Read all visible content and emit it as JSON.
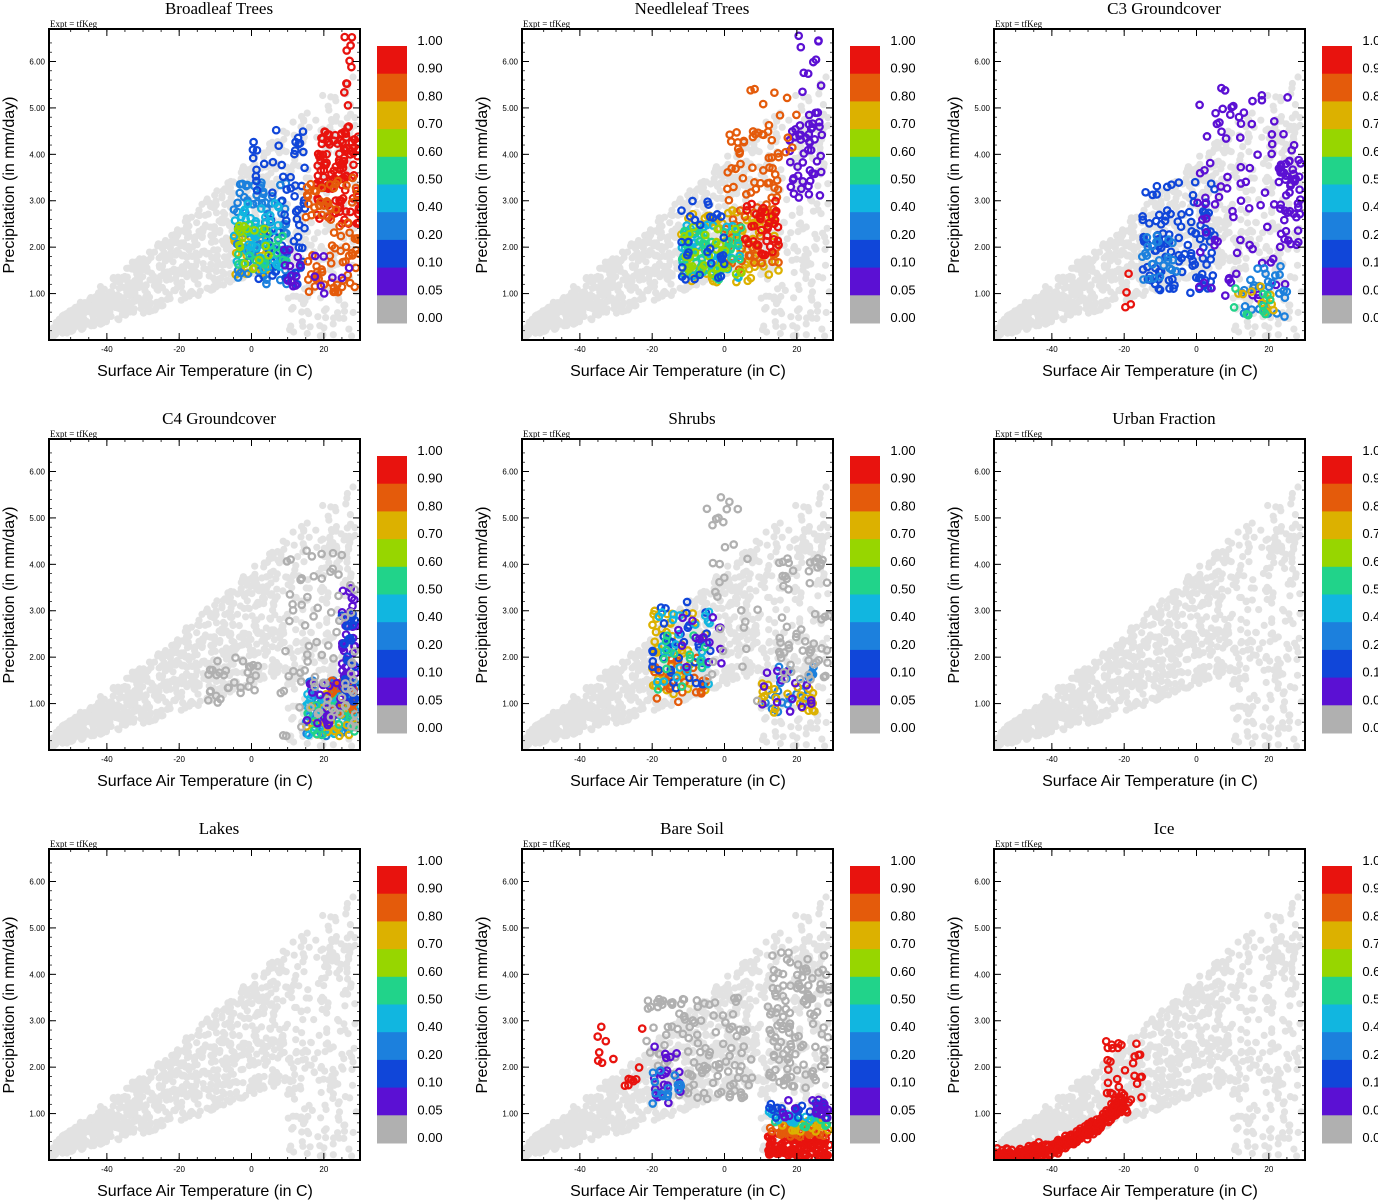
{
  "figure": {
    "expt_label": "Expt = tfKeg",
    "xlabel": "Surface Air Temperature (in C)",
    "ylabel": "Precipitation (in mm/day)"
  },
  "colorbar": {
    "labels": [
      "1.00",
      "0.90",
      "0.80",
      "0.70",
      "0.60",
      "0.50",
      "0.40",
      "0.20",
      "0.10",
      "0.05",
      "0.00"
    ],
    "colors": [
      "#e8130e",
      "#e45b0b",
      "#dcb100",
      "#97d600",
      "#21d38a",
      "#11b6e0",
      "#1c80dd",
      "#1046d9",
      "#5b10d3",
      "#b0b0b0"
    ]
  },
  "chart_data": [
    {
      "type": "scatter",
      "title": "Broadleaf Trees",
      "xlim": [
        -56,
        30
      ],
      "ylim": [
        0,
        6.7
      ],
      "xticks": [
        "-40",
        "-20",
        "0",
        "20"
      ],
      "yticks": [
        "1.00",
        "2.00",
        "3.00",
        "4.00",
        "5.00",
        "6.00"
      ],
      "clusters": [
        {
          "x": [
            -5,
            5
          ],
          "y": [
            1.4,
            2.4
          ],
          "color": "#dcb100",
          "n": 40
        },
        {
          "x": [
            -5,
            10
          ],
          "y": [
            1.2,
            3.4
          ],
          "color": "#1c80dd",
          "n": 80
        },
        {
          "x": [
            0,
            15
          ],
          "y": [
            1.0,
            4.6
          ],
          "color": "#1046d9",
          "n": 70
        },
        {
          "x": [
            -5,
            8
          ],
          "y": [
            1.5,
            3.0
          ],
          "color": "#11b6e0",
          "n": 50
        },
        {
          "x": [
            18,
            30
          ],
          "y": [
            2.5,
            4.5
          ],
          "color": "#e8130e",
          "n": 120
        },
        {
          "x": [
            15,
            30
          ],
          "y": [
            1.0,
            3.5
          ],
          "color": "#e45b0b",
          "n": 80
        },
        {
          "x": [
            -5,
            10
          ],
          "y": [
            1.5,
            2.5
          ],
          "color": "#21d38a",
          "n": 20
        },
        {
          "x": [
            -5,
            5
          ],
          "y": [
            1.5,
            2.5
          ],
          "color": "#97d600",
          "n": 15
        },
        {
          "x": [
            8,
            28
          ],
          "y": [
            1.0,
            2.0
          ],
          "color": "#5b10d3",
          "n": 20
        },
        {
          "x": [
            25,
            29
          ],
          "y": [
            4.5,
            6.6
          ],
          "color": "#e8130e",
          "n": 12
        }
      ]
    },
    {
      "type": "scatter",
      "title": "Needleleaf Trees",
      "xlim": [
        -56,
        30
      ],
      "ylim": [
        0,
        6.7
      ],
      "xticks": [
        "-40",
        "-20",
        "0",
        "20"
      ],
      "yticks": [
        "1.00",
        "2.00",
        "3.00",
        "4.00",
        "5.00",
        "6.00"
      ],
      "clusters": [
        {
          "x": [
            -12,
            15
          ],
          "y": [
            1.2,
            2.8
          ],
          "color": "#dcb100",
          "n": 90
        },
        {
          "x": [
            0,
            15
          ],
          "y": [
            1.5,
            4.5
          ],
          "color": "#e45b0b",
          "n": 80
        },
        {
          "x": [
            5,
            15
          ],
          "y": [
            1.8,
            3.0
          ],
          "color": "#e8130e",
          "n": 40
        },
        {
          "x": [
            -12,
            5
          ],
          "y": [
            1.3,
            2.5
          ],
          "color": "#11b6e0",
          "n": 50
        },
        {
          "x": [
            -12,
            5
          ],
          "y": [
            1.3,
            2.5
          ],
          "color": "#21d38a",
          "n": 40
        },
        {
          "x": [
            -12,
            5
          ],
          "y": [
            1.3,
            2.5
          ],
          "color": "#97d600",
          "n": 30
        },
        {
          "x": [
            -12,
            0
          ],
          "y": [
            1.3,
            3.0
          ],
          "color": "#1046d9",
          "n": 30
        },
        {
          "x": [
            18,
            27
          ],
          "y": [
            3.0,
            5.0
          ],
          "color": "#5b10d3",
          "n": 50
        },
        {
          "x": [
            20,
            27
          ],
          "y": [
            5.0,
            6.6
          ],
          "color": "#5b10d3",
          "n": 10
        },
        {
          "x": [
            5,
            20
          ],
          "y": [
            4.0,
            5.5
          ],
          "color": "#e45b0b",
          "n": 15
        }
      ]
    },
    {
      "type": "scatter",
      "title": "C3 Groundcover",
      "xlim": [
        -56,
        30
      ],
      "ylim": [
        0,
        6.7
      ],
      "xticks": [
        "-40",
        "-20",
        "0",
        "20"
      ],
      "yticks": [
        "1.00",
        "2.00",
        "3.00",
        "4.00",
        "5.00",
        "6.00"
      ],
      "clusters": [
        {
          "x": [
            -15,
            5
          ],
          "y": [
            1.0,
            3.4
          ],
          "color": "#1046d9",
          "n": 110
        },
        {
          "x": [
            -15,
            -5
          ],
          "y": [
            1.3,
            2.3
          ],
          "color": "#1c80dd",
          "n": 25
        },
        {
          "x": [
            0,
            28
          ],
          "y": [
            0.8,
            5.5
          ],
          "color": "#5b10d3",
          "n": 90
        },
        {
          "x": [
            12,
            25
          ],
          "y": [
            0.5,
            1.6
          ],
          "color": "#1c80dd",
          "n": 30
        },
        {
          "x": [
            10,
            22
          ],
          "y": [
            0.5,
            1.2
          ],
          "color": "#dcb100",
          "n": 10
        },
        {
          "x": [
            10,
            22
          ],
          "y": [
            0.5,
            1.2
          ],
          "color": "#21d38a",
          "n": 10
        },
        {
          "x": [
            -20,
            -18
          ],
          "y": [
            0.7,
            1.5
          ],
          "color": "#e8130e",
          "n": 4
        },
        {
          "x": [
            23,
            29
          ],
          "y": [
            2.0,
            4.0
          ],
          "color": "#5b10d3",
          "n": 40
        }
      ]
    },
    {
      "type": "scatter",
      "title": "C4 Groundcover",
      "xlim": [
        -56,
        30
      ],
      "ylim": [
        0,
        6.7
      ],
      "xticks": [
        "-40",
        "-20",
        "0",
        "20"
      ],
      "yticks": [
        "1.00",
        "2.00",
        "3.00",
        "4.00",
        "5.00",
        "6.00"
      ],
      "clusters": [
        {
          "x": [
            15,
            29
          ],
          "y": [
            0.3,
            1.5
          ],
          "color": "#1c80dd",
          "n": 70
        },
        {
          "x": [
            15,
            29
          ],
          "y": [
            0.3,
            1.2
          ],
          "color": "#11b6e0",
          "n": 40
        },
        {
          "x": [
            15,
            29
          ],
          "y": [
            0.3,
            1.2
          ],
          "color": "#dcb100",
          "n": 25
        },
        {
          "x": [
            15,
            29
          ],
          "y": [
            0.3,
            1.2
          ],
          "color": "#21d38a",
          "n": 20
        },
        {
          "x": [
            22,
            29
          ],
          "y": [
            0.8,
            1.5
          ],
          "color": "#e45b0b",
          "n": 20
        },
        {
          "x": [
            25,
            29
          ],
          "y": [
            1.0,
            3.5
          ],
          "color": "#5b10d3",
          "n": 40
        },
        {
          "x": [
            25,
            29
          ],
          "y": [
            1.0,
            3.0
          ],
          "color": "#1046d9",
          "n": 30
        },
        {
          "x": [
            15,
            25
          ],
          "y": [
            0.5,
            1.5
          ],
          "color": "#5b10d3",
          "n": 20
        },
        {
          "x": [
            -12,
            2
          ],
          "y": [
            1.0,
            2.0
          ],
          "color": "#b0b0b0",
          "n": 30
        },
        {
          "x": [
            8,
            29
          ],
          "y": [
            0.3,
            4.3
          ],
          "color": "#b0b0b0",
          "n": 80
        }
      ]
    },
    {
      "type": "scatter",
      "title": "Shrubs",
      "xlim": [
        -56,
        30
      ],
      "ylim": [
        0,
        6.7
      ],
      "xticks": [
        "-40",
        "-20",
        "0",
        "20"
      ],
      "yticks": [
        "1.00",
        "2.00",
        "3.00",
        "4.00",
        "5.00",
        "6.00"
      ],
      "clusters": [
        {
          "x": [
            -20,
            -5
          ],
          "y": [
            1.2,
            3.0
          ],
          "color": "#dcb100",
          "n": 50
        },
        {
          "x": [
            -20,
            -5
          ],
          "y": [
            1.0,
            2.0
          ],
          "color": "#e45b0b",
          "n": 30
        },
        {
          "x": [
            -20,
            -3
          ],
          "y": [
            1.3,
            3.2
          ],
          "color": "#1046d9",
          "n": 40
        },
        {
          "x": [
            -20,
            -3
          ],
          "y": [
            1.3,
            3.0
          ],
          "color": "#11b6e0",
          "n": 25
        },
        {
          "x": [
            -20,
            -5
          ],
          "y": [
            1.3,
            2.5
          ],
          "color": "#21d38a",
          "n": 15
        },
        {
          "x": [
            -15,
            0
          ],
          "y": [
            1.5,
            3.2
          ],
          "color": "#5b10d3",
          "n": 15
        },
        {
          "x": [
            10,
            25
          ],
          "y": [
            0.8,
            1.8
          ],
          "color": "#1c80dd",
          "n": 25
        },
        {
          "x": [
            10,
            25
          ],
          "y": [
            0.8,
            1.5
          ],
          "color": "#dcb100",
          "n": 25
        },
        {
          "x": [
            10,
            25
          ],
          "y": [
            0.8,
            1.8
          ],
          "color": "#5b10d3",
          "n": 15
        },
        {
          "x": [
            15,
            29
          ],
          "y": [
            1.5,
            4.2
          ],
          "color": "#b0b0b0",
          "n": 60
        },
        {
          "x": [
            -5,
            10
          ],
          "y": [
            1.0,
            5.5
          ],
          "color": "#b0b0b0",
          "n": 30
        }
      ]
    },
    {
      "type": "scatter",
      "title": "Urban Fraction",
      "xlim": [
        -56,
        30
      ],
      "ylim": [
        0,
        6.7
      ],
      "xticks": [
        "-40",
        "-20",
        "0",
        "20"
      ],
      "yticks": [
        "1.00",
        "2.00",
        "3.00",
        "4.00",
        "5.00",
        "6.00"
      ],
      "clusters": []
    },
    {
      "type": "scatter",
      "title": "Lakes",
      "xlim": [
        -56,
        30
      ],
      "ylim": [
        0,
        6.7
      ],
      "xticks": [
        "-40",
        "-20",
        "0",
        "20"
      ],
      "yticks": [
        "1.00",
        "2.00",
        "3.00",
        "4.00",
        "5.00",
        "6.00"
      ],
      "clusters": []
    },
    {
      "type": "scatter",
      "title": "Bare Soil",
      "xlim": [
        -56,
        30
      ],
      "ylim": [
        0,
        6.7
      ],
      "xticks": [
        "-40",
        "-20",
        "0",
        "20"
      ],
      "yticks": [
        "1.00",
        "2.00",
        "3.00",
        "4.00",
        "5.00",
        "6.00"
      ],
      "clusters": [
        {
          "x": [
            -22,
            8
          ],
          "y": [
            1.3,
            3.5
          ],
          "color": "#b0b0b0",
          "n": 120
        },
        {
          "x": [
            12,
            29
          ],
          "y": [
            1.5,
            4.5
          ],
          "color": "#b0b0b0",
          "n": 120
        },
        {
          "x": [
            12,
            29
          ],
          "y": [
            0.05,
            0.6
          ],
          "color": "#e8130e",
          "n": 120
        },
        {
          "x": [
            12,
            29
          ],
          "y": [
            0.5,
            0.8
          ],
          "color": "#e45b0b",
          "n": 30
        },
        {
          "x": [
            12,
            29
          ],
          "y": [
            0.6,
            0.9
          ],
          "color": "#dcb100",
          "n": 20
        },
        {
          "x": [
            12,
            29
          ],
          "y": [
            0.7,
            1.0
          ],
          "color": "#21d38a",
          "n": 15
        },
        {
          "x": [
            12,
            29
          ],
          "y": [
            0.8,
            1.1
          ],
          "color": "#11b6e0",
          "n": 15
        },
        {
          "x": [
            12,
            29
          ],
          "y": [
            0.9,
            1.3
          ],
          "color": "#1046d9",
          "n": 20
        },
        {
          "x": [
            12,
            29
          ],
          "y": [
            0.9,
            1.3
          ],
          "color": "#5b10d3",
          "n": 20
        },
        {
          "x": [
            -20,
            -12
          ],
          "y": [
            1.2,
            2.5
          ],
          "color": "#5b10d3",
          "n": 20
        },
        {
          "x": [
            -20,
            -12
          ],
          "y": [
            1.2,
            2.2
          ],
          "color": "#1c80dd",
          "n": 15
        },
        {
          "x": [
            -38,
            -18
          ],
          "y": [
            1.5,
            2.9
          ],
          "color": "#e8130e",
          "n": 15
        }
      ]
    },
    {
      "type": "scatter",
      "title": "Ice",
      "xlim": [
        -56,
        30
      ],
      "ylim": [
        0,
        6.7
      ],
      "xticks": [
        "-40",
        "-20",
        "0",
        "20"
      ],
      "yticks": [
        "1.00",
        "2.00",
        "3.00",
        "4.00",
        "5.00",
        "6.00"
      ],
      "clusters": [
        {
          "band": true,
          "x": [
            -56,
            -20
          ],
          "color": "#e8130e",
          "n": 300
        },
        {
          "x": [
            -25,
            -15
          ],
          "y": [
            1.0,
            2.6
          ],
          "color": "#e8130e",
          "n": 40
        }
      ]
    }
  ]
}
